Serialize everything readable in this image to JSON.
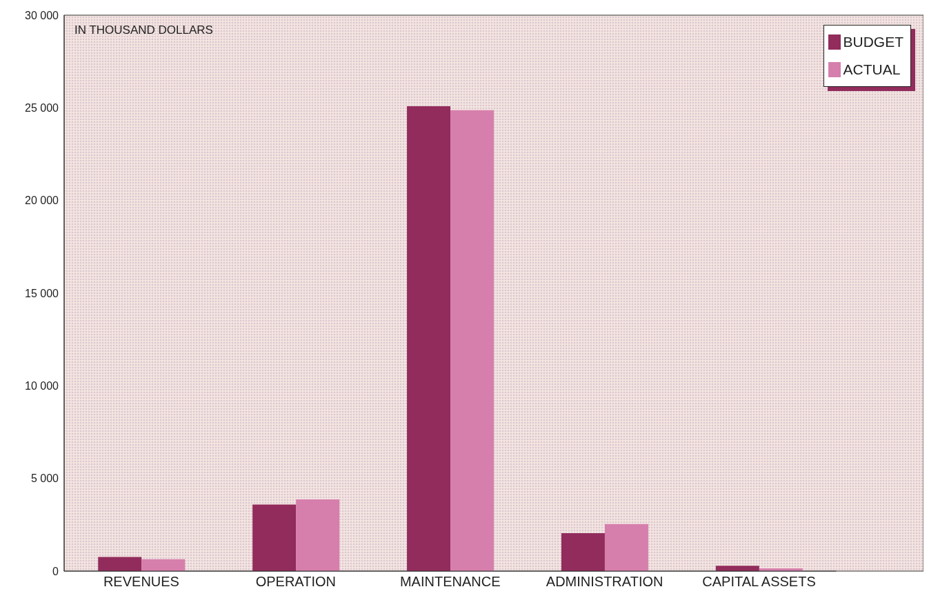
{
  "chart_data": {
    "type": "bar",
    "categories": [
      "REVENUES",
      "OPERATION",
      "MAINTENANCE",
      "ADMINISTRATION",
      "CAPITAL ASSETS"
    ],
    "series": [
      {
        "name": "BUDGET",
        "color": "#922c5c",
        "values": [
          760,
          3590,
          25090,
          2050,
          290
        ]
      },
      {
        "name": "ACTUAL",
        "color": "#d67fad",
        "values": [
          640,
          3870,
          24870,
          2540,
          150
        ]
      }
    ],
    "ylim": [
      0,
      30000
    ],
    "yticks": [
      {
        "value": 0,
        "label": "0"
      },
      {
        "value": 5000,
        "label": "5 000"
      },
      {
        "value": 10000,
        "label": "10 000"
      },
      {
        "value": 15000,
        "label": "15 000"
      },
      {
        "value": 20000,
        "label": "20 000"
      },
      {
        "value": 25000,
        "label": "25 000"
      },
      {
        "value": 30000,
        "label": "30 000"
      }
    ],
    "annotations": [
      "IN THOUSAND DOLLARS"
    ],
    "legend": "top right",
    "grid": false
  }
}
